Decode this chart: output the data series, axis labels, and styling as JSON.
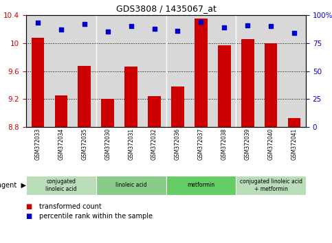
{
  "title": "GDS3808 / 1435067_at",
  "samples": [
    "GSM372033",
    "GSM372034",
    "GSM372035",
    "GSM372030",
    "GSM372031",
    "GSM372032",
    "GSM372036",
    "GSM372037",
    "GSM372038",
    "GSM372039",
    "GSM372040",
    "GSM372041"
  ],
  "transformed_count": [
    10.08,
    9.25,
    9.67,
    9.2,
    9.66,
    9.24,
    9.38,
    10.35,
    9.97,
    10.06,
    10.0,
    8.93
  ],
  "percentile_rank": [
    93,
    87,
    92,
    85,
    90,
    88,
    86,
    94,
    89,
    91,
    90,
    84
  ],
  "ylim_left": [
    8.8,
    10.4
  ],
  "ylim_right": [
    0,
    100
  ],
  "yticks_left": [
    8.8,
    9.2,
    9.6,
    10.0,
    10.4
  ],
  "yticks_right": [
    0,
    25,
    50,
    75,
    100
  ],
  "ytick_labels_left": [
    "8.8",
    "9.2",
    "9.6",
    "10",
    "10.4"
  ],
  "ytick_labels_right": [
    "0",
    "25",
    "50",
    "75",
    "100%"
  ],
  "bar_color": "#cc0000",
  "dot_color": "#0000cc",
  "agent_groups": [
    {
      "label": "conjugated\nlinoleic acid",
      "start": 0,
      "end": 2,
      "color": "#b8ddb8"
    },
    {
      "label": "linoleic acid",
      "start": 3,
      "end": 5,
      "color": "#88cc88"
    },
    {
      "label": "metformin",
      "start": 6,
      "end": 8,
      "color": "#66cc66"
    },
    {
      "label": "conjugated linoleic acid\n+ metformin",
      "start": 9,
      "end": 11,
      "color": "#b8ddb8"
    }
  ],
  "group_boundaries": [
    3,
    6,
    9
  ],
  "legend_items": [
    {
      "label": "transformed count",
      "color": "#cc0000"
    },
    {
      "label": "percentile rank within the sample",
      "color": "#0000cc"
    }
  ],
  "background_color": "#ffffff",
  "plot_bg_color": "#d8d8d8",
  "xlabel_area_color": "#c0c0c0"
}
